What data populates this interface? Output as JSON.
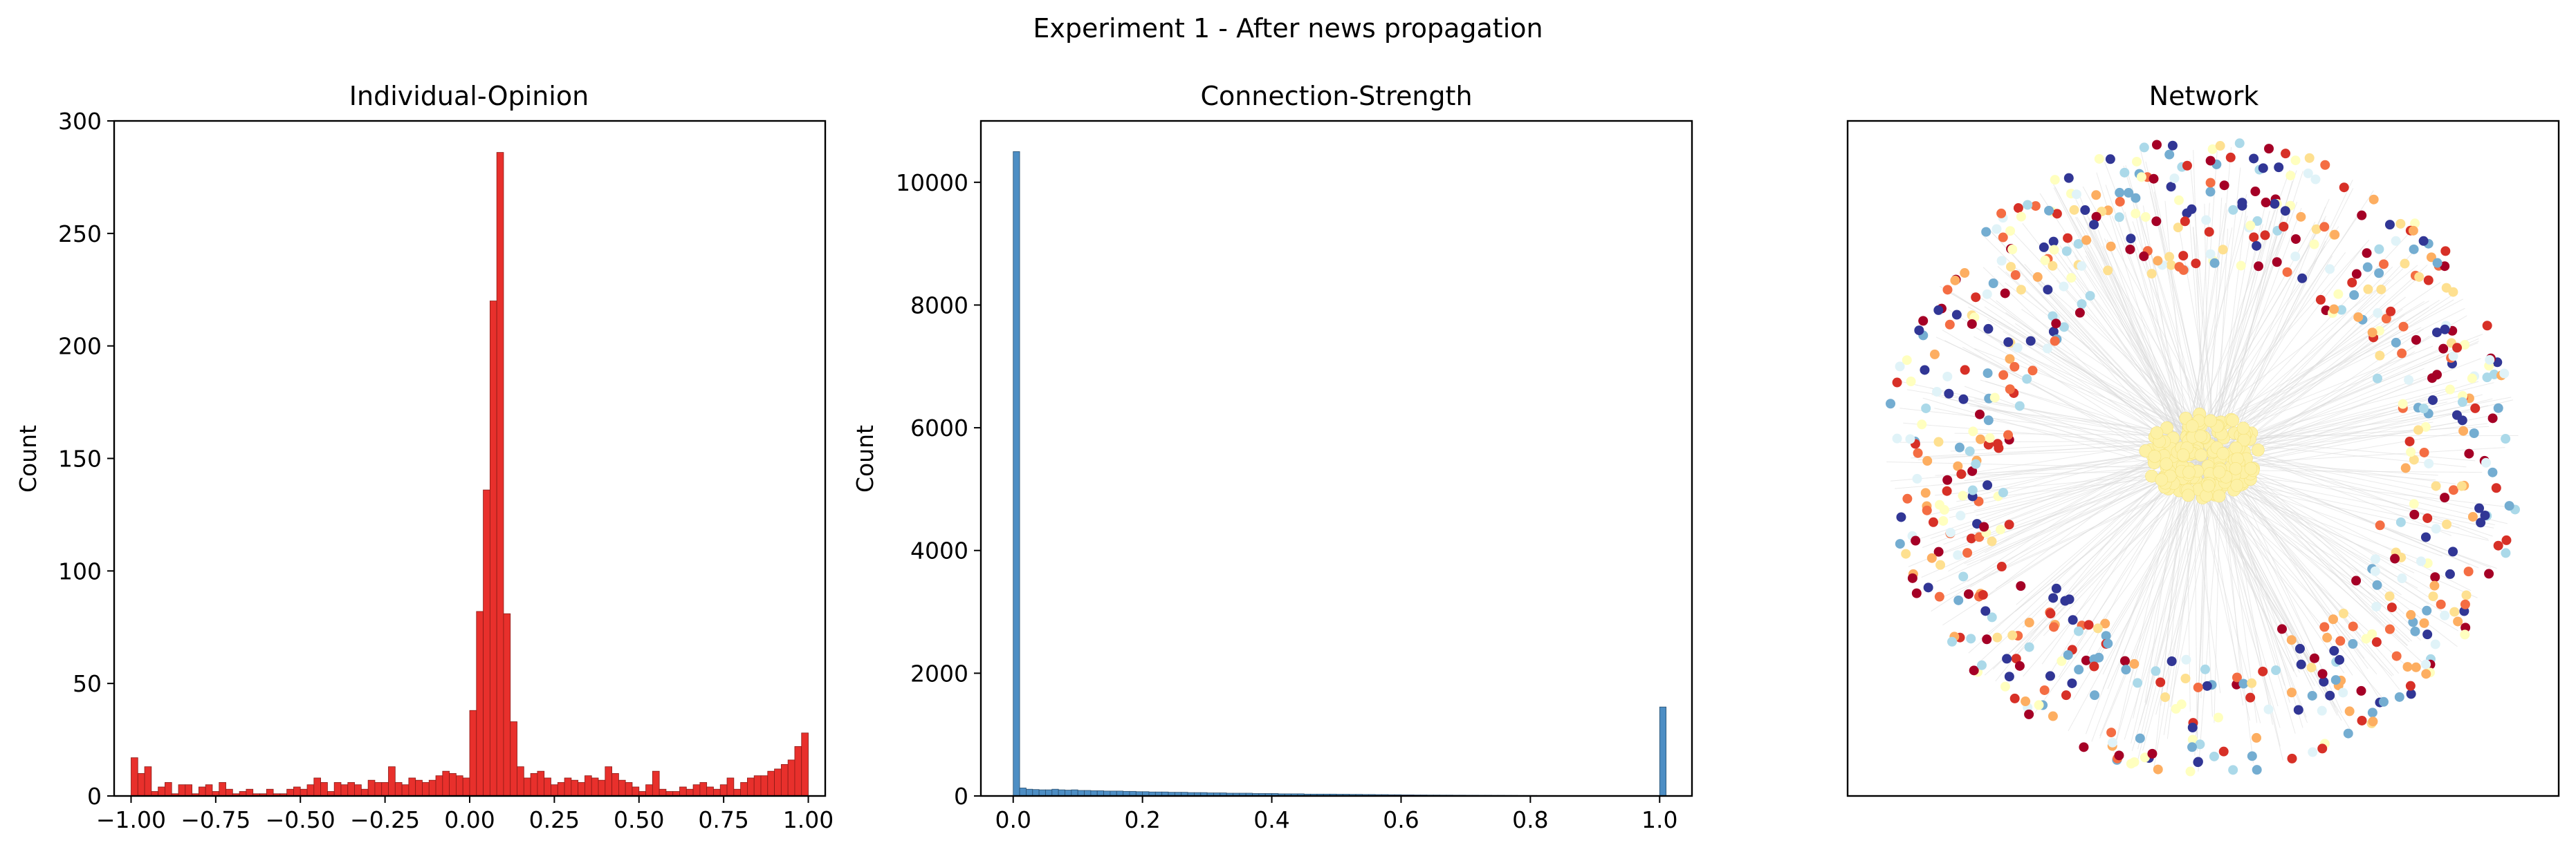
{
  "figure_title": "Experiment 1 - After news propagation",
  "chart_data": [
    {
      "type": "bar",
      "title": "Individual-Opinion",
      "xlabel": "",
      "ylabel": "Count",
      "xlim": [
        -1.05,
        1.05
      ],
      "ylim": [
        0,
        300
      ],
      "bin_start": -1.0,
      "bin_width": 0.02,
      "color": "#e8302c",
      "edge_color": "#8a1a16",
      "xticks": [
        -1.0,
        -0.75,
        -0.5,
        -0.25,
        0.0,
        0.25,
        0.5,
        0.75,
        1.0
      ],
      "xtick_labels": [
        "−1.00",
        "−0.75",
        "−0.50",
        "−0.25",
        "0.00",
        "0.25",
        "0.50",
        "0.75",
        "1.00"
      ],
      "yticks": [
        0,
        50,
        100,
        150,
        200,
        250,
        300
      ],
      "ytick_labels": [
        "0",
        "50",
        "100",
        "150",
        "200",
        "250",
        "300"
      ],
      "values": [
        17,
        10,
        13,
        2,
        4,
        6,
        1,
        5,
        5,
        1,
        4,
        5,
        2,
        6,
        3,
        1,
        2,
        3,
        1,
        1,
        3,
        1,
        1,
        3,
        4,
        3,
        5,
        8,
        6,
        2,
        6,
        5,
        6,
        5,
        3,
        7,
        6,
        6,
        13,
        6,
        5,
        8,
        7,
        6,
        7,
        9,
        11,
        10,
        9,
        8,
        38,
        82,
        136,
        220,
        286,
        81,
        33,
        13,
        8,
        10,
        11,
        8,
        5,
        6,
        8,
        7,
        6,
        9,
        8,
        7,
        13,
        10,
        7,
        6,
        4,
        2,
        5,
        11,
        3,
        2,
        2,
        4,
        3,
        5,
        6,
        4,
        3,
        5,
        8,
        3,
        6,
        8,
        9,
        9,
        11,
        12,
        14,
        16,
        22,
        28
      ]
    },
    {
      "type": "bar",
      "title": "Connection-Strength",
      "xlabel": "",
      "ylabel": "Count",
      "xlim": [
        -0.05,
        1.05
      ],
      "ylim": [
        0,
        11000
      ],
      "bin_start": 0.0,
      "bin_width": 0.01,
      "color": "#4d8ec4",
      "edge_color": "#2a4f70",
      "xticks": [
        0.0,
        0.2,
        0.4,
        0.6,
        0.8,
        1.0
      ],
      "xtick_labels": [
        "0.0",
        "0.2",
        "0.4",
        "0.6",
        "0.8",
        "1.0"
      ],
      "yticks": [
        0,
        2000,
        4000,
        6000,
        8000,
        10000
      ],
      "ytick_labels": [
        "0",
        "2000",
        "4000",
        "6000",
        "8000",
        "10000"
      ],
      "values": [
        10500,
        130,
        110,
        105,
        100,
        100,
        110,
        100,
        95,
        100,
        90,
        90,
        85,
        85,
        80,
        80,
        80,
        75,
        75,
        70,
        70,
        65,
        65,
        65,
        60,
        60,
        60,
        55,
        55,
        55,
        50,
        50,
        50,
        45,
        45,
        45,
        45,
        40,
        40,
        40,
        40,
        35,
        35,
        35,
        35,
        30,
        30,
        30,
        30,
        30,
        28,
        28,
        26,
        26,
        24,
        24,
        22,
        22,
        20,
        20,
        18,
        18,
        16,
        16,
        15,
        15,
        14,
        14,
        13,
        13,
        12,
        12,
        11,
        11,
        10,
        10,
        9,
        9,
        8,
        8,
        8,
        7,
        7,
        7,
        6,
        6,
        6,
        5,
        5,
        5,
        5,
        4,
        4,
        4,
        3,
        3,
        3,
        3,
        2,
        2,
        1450
      ]
    },
    {
      "type": "scatter",
      "title": "Network",
      "xlabel": "",
      "ylabel": "",
      "grid": false,
      "axes_ticks": false,
      "node_colors": [
        "#a50026",
        "#d73027",
        "#f46d43",
        "#fdae61",
        "#fee090",
        "#ffffbf",
        "#e0f3f8",
        "#abd9e9",
        "#74add1",
        "#313695"
      ],
      "hub_color": "#fdf1a6",
      "edge_color": "#d9d9d9"
    }
  ]
}
